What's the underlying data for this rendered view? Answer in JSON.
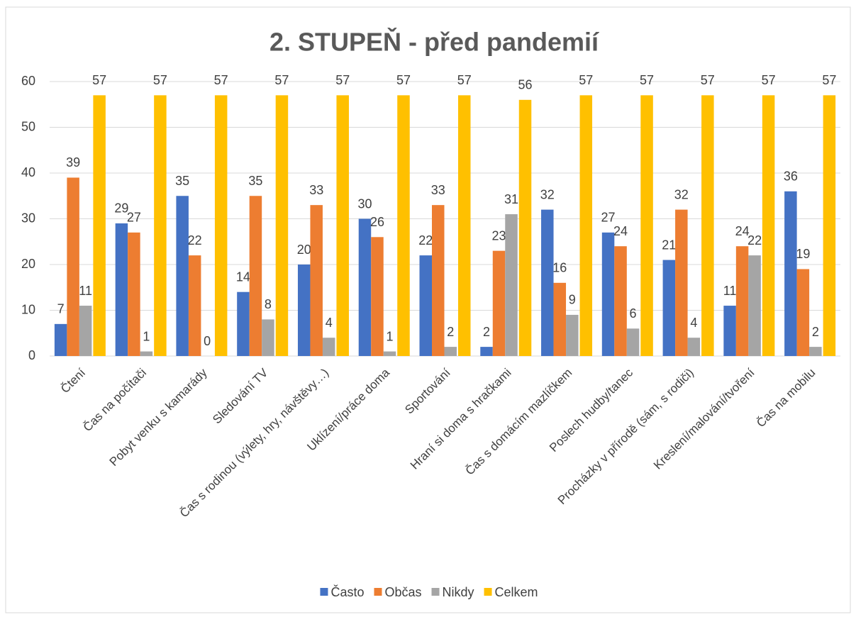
{
  "chart_data": {
    "type": "bar",
    "title": "2. STUPEŇ - před pandemií",
    "categories": [
      "Čtení",
      "Čas na počítači",
      "Pobyt venku s kamarády",
      "Sledování TV",
      "Čas s rodinou (výlety, hry, návštěvy…)",
      "Uklízení/práce doma",
      "Sportování",
      "Hraní si doma s hračkami",
      "Čas s domácím mazlíčkem",
      "Poslech hudby/tanec",
      "Procházky v přírodě (sám, s rodiči)",
      "Kreslení/malování/tvoření",
      "Čas na mobilu"
    ],
    "series": [
      {
        "name": "Často",
        "color": "#4472c4",
        "values": [
          7,
          29,
          35,
          14,
          20,
          30,
          22,
          2,
          32,
          27,
          21,
          11,
          36
        ]
      },
      {
        "name": "Občas",
        "color": "#ed7d31",
        "values": [
          39,
          27,
          22,
          35,
          33,
          26,
          33,
          23,
          16,
          24,
          32,
          24,
          19
        ]
      },
      {
        "name": "Nikdy",
        "color": "#a5a5a5",
        "values": [
          11,
          1,
          0,
          8,
          4,
          1,
          2,
          31,
          9,
          6,
          4,
          22,
          2
        ]
      },
      {
        "name": "Celkem",
        "color": "#ffc000",
        "values": [
          57,
          57,
          57,
          57,
          57,
          57,
          57,
          56,
          57,
          57,
          57,
          57,
          57
        ]
      }
    ],
    "ylim": [
      0,
      60
    ],
    "yticks": [
      0,
      10,
      20,
      30,
      40,
      50,
      60
    ],
    "grid": true,
    "legend": "bottom"
  }
}
